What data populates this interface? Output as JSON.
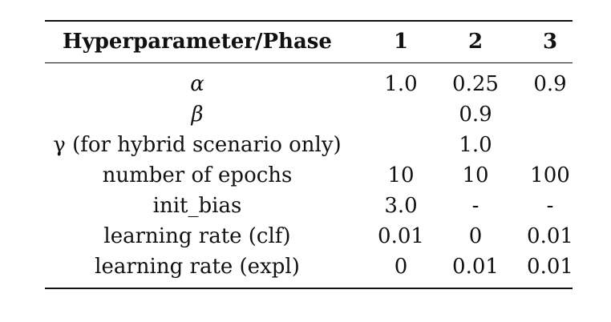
{
  "table": {
    "headers": [
      "Hyperparameter/Phase",
      "1",
      "2",
      "3"
    ],
    "rows": [
      {
        "label": "α",
        "c1": "1.0",
        "c2": "0.25",
        "c3": "0.9"
      },
      {
        "label": "β",
        "c2": "0.9"
      },
      {
        "label": "γ (for hybrid scenario only)",
        "c2": "1.0"
      },
      {
        "label": "number of epochs",
        "c1": "10",
        "c2": "10",
        "c3": "100"
      },
      {
        "label": "init_bias",
        "c1": "3.0",
        "c2": "-",
        "c3": "-"
      },
      {
        "label": "learning rate (clf)",
        "c1": "0.01",
        "c2": "0",
        "c3": "0.01"
      },
      {
        "label": "learning rate (expl)",
        "c1": "0",
        "c2": "0.01",
        "c3": "0.01"
      }
    ]
  }
}
